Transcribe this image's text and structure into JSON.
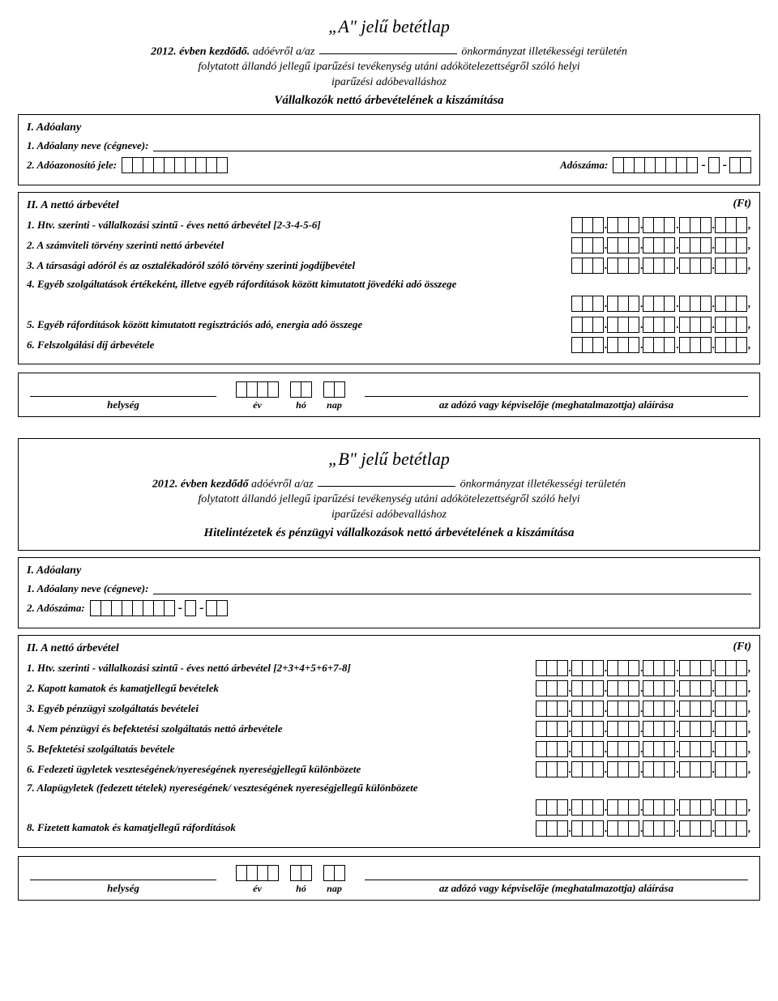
{
  "formA": {
    "title": "„A\" jelű betétlap",
    "year_prefix": "2012. évben kezdődő.",
    "hdr_before_blank": " adóévről a/az ",
    "hdr_after_blank": " önkormányzat illetékességi területén",
    "hdr_line2": "folytatott állandó jellegű iparűzési tevékenység utáni adókötelezettségről szóló helyi",
    "hdr_line3": "iparűzési adóbevalláshoz",
    "hdr_sub": "Vállalkozók nettó árbevételének a kiszámítása",
    "sec1_head": "I. Adóalany",
    "row1": "1.  Adóalany neve (cégneve):",
    "row2": "2. Adóazonosító jele:",
    "row2b": "Adószáma:",
    "sec2_head": "II. A nettó árbevétel",
    "ft": "(Ft)",
    "items": [
      "1. Htv. szerinti - vállalkozási szintű - éves nettó árbevétel [2-3-4-5-6]",
      "2. A számviteli törvény szerinti nettó árbevétel",
      "3. A társasági adóról és az osztalékadóról szóló törvény szerinti jogdíjbevétel",
      "4. Egyéb szolgáltatások értékeként, illetve egyéb ráfordítások között kimutatott jövedéki adó összege",
      "5. Egyéb ráfordítások között kimutatott regisztrációs adó, energia adó összege",
      "6. Felszolgálási díj árbevétele"
    ],
    "amount_groups_a": 5,
    "amount_group_size_a": 3,
    "tax_id_cells": 10,
    "tax_num_g1": 8,
    "tax_num_g2": 1,
    "tax_num_g3": 2,
    "sig_left": "helység",
    "sig_right": "az adózó vagy képviselője (meghatalmazottja) aláírása",
    "date_year_cells": 4,
    "date_month_cells": 2,
    "date_day_cells": 2,
    "date_year": "év",
    "date_month": "hó",
    "date_day": "nap"
  },
  "formB": {
    "title": "„B\" jelű betétlap",
    "year_prefix": "2012. évben kezdődő",
    "hdr_before_blank": " adóévről a/az ",
    "hdr_after_blank": " önkormányzat illetékességi területén",
    "hdr_line2": "folytatott állandó jellegű iparűzési tevékenység utáni adókötelezettségről szóló helyi",
    "hdr_line3": "iparűzési adóbevalláshoz",
    "hdr_sub": "Hitelintézetek és pénzügyi vállalkozások nettó árbevételének a kiszámítása",
    "sec1_head": "I. Adóalany",
    "row1": "1.  Adóalany neve (cégneve):",
    "row2": "2.  Adószáma:",
    "sec2_head": "II. A nettó árbevétel",
    "ft": "(Ft)",
    "items": [
      "1. Htv. szerinti - vállalkozási szintű - éves nettó árbevétel [2+3+4+5+6+7-8]",
      "2. Kapott kamatok és kamatjellegű bevételek",
      "3. Egyéb pénzügyi szolgáltatás bevételei",
      "4. Nem pénzügyi és befektetési szolgáltatás nettó árbevétele",
      "5. Befektetési szolgáltatás bevétele",
      "6. Fedezeti ügyletek veszteségének/nyereségének nyereségjellegű különbözete",
      "7. Alapügyletek (fedezett tételek) nyereségének/ veszteségének nyereségjellegű különbözete",
      "8. Fizetett kamatok és kamatjellegű ráfordítások"
    ],
    "amount_groups_b": 6,
    "amount_group_size_b": 3,
    "tax_num_g1": 8,
    "tax_num_g2": 1,
    "tax_num_g3": 2,
    "sig_left": "helység",
    "sig_right": "az adózó vagy képviselője (meghatalmazottja) aláírása",
    "date_year_cells": 4,
    "date_month_cells": 2,
    "date_day_cells": 2,
    "date_year": "év",
    "date_month": "hó",
    "date_day": "nap"
  }
}
